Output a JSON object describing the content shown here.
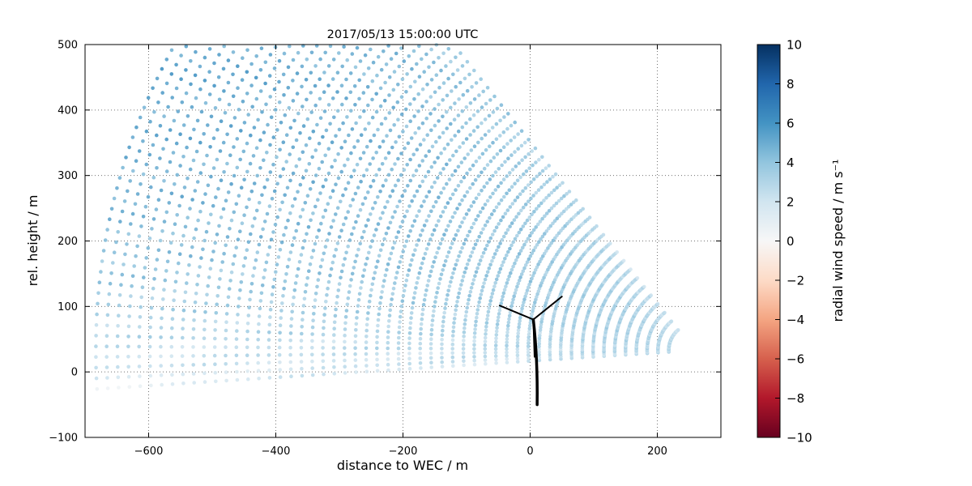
{
  "chart_data": {
    "type": "scatter",
    "title": "2017/05/13 15:00:00 UTC",
    "xlabel": "distance to WEC / m",
    "ylabel": "rel. height / m",
    "xlim": [
      -700,
      300
    ],
    "ylim": [
      -100,
      500
    ],
    "xticks": [
      -600,
      -400,
      -200,
      0,
      200
    ],
    "xtick_labels": [
      "−600",
      "−400",
      "−200",
      "0",
      "200"
    ],
    "yticks": [
      -100,
      0,
      100,
      200,
      300,
      400,
      500
    ],
    "ytick_labels": [
      "−100",
      "0",
      "100",
      "200",
      "300",
      "400",
      "500"
    ],
    "grid": true,
    "grid_style": "dotted",
    "background_color": "#ffffff",
    "colorbar": {
      "label": "radial wind speed / m s⁻¹",
      "vmin": -10,
      "vmax": 10,
      "ticks": [
        10,
        8,
        6,
        4,
        2,
        0,
        -2,
        -4,
        -6,
        -8,
        -10
      ],
      "tick_labels": [
        "10",
        "8",
        "6",
        "4",
        "2",
        "0",
        "−2",
        "−4",
        "−6",
        "−8",
        "−10"
      ],
      "colormap": "RdBu",
      "colormap_anchors": [
        "#67001f",
        "#b2182b",
        "#d6604d",
        "#f4a582",
        "#fddbc7",
        "#f7f7f7",
        "#d1e5f0",
        "#92c5de",
        "#4393c3",
        "#2166ac",
        "#053061"
      ]
    },
    "scan": {
      "description": "lidar RHI fan scan, beams emanate from origin toward negative x",
      "origin_x": 258,
      "origin_y": 33,
      "elev_min_deg": -3.6,
      "elev_max_deg": 51,
      "n_beams": 56,
      "range_min": 40,
      "range_max": 955,
      "range_step": 17,
      "marker_radius_px": 2.3,
      "marker_opacity": 0.9
    },
    "wind_profile": {
      "u_ref": 6.3,
      "z_ref": 500,
      "z_offset": 35,
      "alpha": 0.42,
      "noise_amp1": 0.5,
      "noise_amp2": 0.35
    },
    "turbine": {
      "x": 5,
      "hub_height": 80,
      "tower_base_x": 11,
      "tower_base_y": -50,
      "rotor_radius": 57,
      "blade_angles_deg": [
        38,
        158,
        272
      ],
      "color": "#000000"
    }
  }
}
